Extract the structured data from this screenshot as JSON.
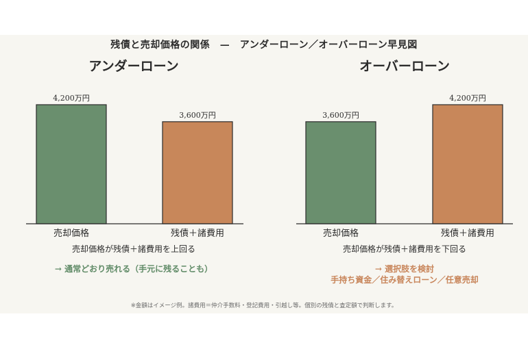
{
  "title": "残債と売却価格の関係　—　アンダーローン／オーバーローン早見図",
  "charts": [
    {
      "title": "アンダーローン",
      "caption": "売却価格が残債＋諸費用を上回る",
      "note_lines": [
        "→ 通常どおり売れる（手元に残ることも）"
      ],
      "note_color": "#5f8a66"
    },
    {
      "title": "オーバーローン",
      "caption": "売却価格が残債＋諸費用を下回る",
      "note_lines": [
        "→ 選択肢を検討",
        "手持ち資金／住み替えローン／任意売却"
      ],
      "note_color": "#c8855a"
    }
  ],
  "footnote": "※金額はイメージ例。諸費用＝仲介手数料・登記費用・引越し等。個別の残債と査定額で判断します。",
  "colors": {
    "green": "#6a8f6e",
    "orange": "#c8875a"
  },
  "chart_data": [
    {
      "type": "bar",
      "title": "アンダーローン",
      "categories": [
        "売却価格",
        "残債＋諸費用"
      ],
      "values": [
        4200,
        3600
      ],
      "value_labels": [
        "4,200万円",
        "3,600万円"
      ],
      "unit": "万円",
      "ylim": [
        0,
        4200
      ],
      "colors": [
        "#6a8f6e",
        "#c8875a"
      ]
    },
    {
      "type": "bar",
      "title": "オーバーローン",
      "categories": [
        "売却価格",
        "残債＋諸費用"
      ],
      "values": [
        3600,
        4200
      ],
      "value_labels": [
        "3,600万円",
        "4,200万円"
      ],
      "unit": "万円",
      "ylim": [
        0,
        4200
      ],
      "colors": [
        "#6a8f6e",
        "#c8875a"
      ]
    }
  ]
}
